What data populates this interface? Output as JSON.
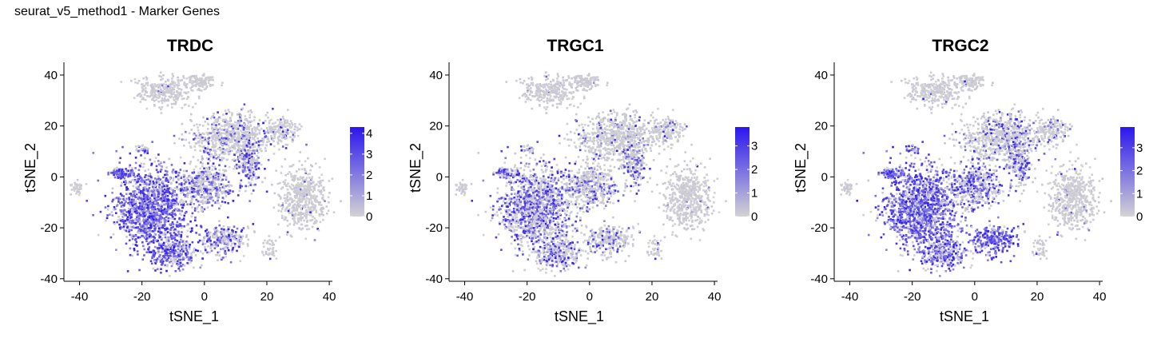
{
  "page": {
    "title": "seurat_v5_method1 - Marker Genes"
  },
  "colors": {
    "low": "#d3d3d3",
    "high": "#2a16ee",
    "axis": "#000000"
  },
  "chart_data": [
    {
      "type": "scatter",
      "title": "TRDC",
      "xlabel": "tSNE_1",
      "ylabel": "tSNE_2",
      "xlim": [
        -45,
        41
      ],
      "ylim": [
        -41,
        45
      ],
      "xticks": [
        -40,
        -20,
        0,
        20,
        40
      ],
      "yticks": [
        -40,
        -20,
        0,
        20,
        40
      ],
      "xticklabels": [
        "-40",
        "-20",
        "0",
        "20",
        "40"
      ],
      "yticklabels": [
        "-40",
        "-20",
        "0",
        "20",
        "40"
      ],
      "colorbar": {
        "min": 0,
        "max": 4.3,
        "ticks": [
          0,
          1,
          2,
          3,
          4
        ],
        "ticklabels": [
          "0",
          "1",
          "2",
          "3",
          "4"
        ]
      },
      "expression_by_region": {
        "lower-left cluster": "high",
        "upper-left cluster": "none",
        "right cluster": "none",
        "center-right cluster": "moderate"
      }
    },
    {
      "type": "scatter",
      "title": "TRGC1",
      "xlabel": "tSNE_1",
      "ylabel": "tSNE_2",
      "xlim": [
        -45,
        41
      ],
      "ylim": [
        -41,
        45
      ],
      "xticks": [
        -40,
        -20,
        0,
        20,
        40
      ],
      "yticks": [
        -40,
        -20,
        0,
        20,
        40
      ],
      "xticklabels": [
        "-40",
        "-20",
        "0",
        "20",
        "40"
      ],
      "yticklabels": [
        "-40",
        "-20",
        "0",
        "20",
        "40"
      ],
      "colorbar": {
        "min": 0,
        "max": 3.8,
        "ticks": [
          0,
          1,
          2,
          3
        ],
        "ticklabels": [
          "0",
          "1",
          "2",
          "3"
        ]
      },
      "expression_by_region": {
        "lower-left cluster": "moderate",
        "upper-left cluster": "none",
        "right cluster": "none",
        "center-right cluster": "low"
      }
    },
    {
      "type": "scatter",
      "title": "TRGC2",
      "xlabel": "tSNE_1",
      "ylabel": "tSNE_2",
      "xlim": [
        -45,
        41
      ],
      "ylim": [
        -41,
        45
      ],
      "xticks": [
        -40,
        -20,
        0,
        20,
        40
      ],
      "yticks": [
        -40,
        -20,
        0,
        20,
        40
      ],
      "xticklabels": [
        "-40",
        "-20",
        "0",
        "20",
        "40"
      ],
      "yticklabels": [
        "-40",
        "-20",
        "0",
        "20",
        "40"
      ],
      "colorbar": {
        "min": 0,
        "max": 3.9,
        "ticks": [
          0,
          1,
          2,
          3
        ],
        "ticklabels": [
          "0",
          "1",
          "2",
          "3"
        ]
      },
      "expression_by_region": {
        "lower-left cluster": "high",
        "upper-left cluster": "none",
        "right cluster": "none",
        "center-right cluster": "moderate"
      }
    }
  ]
}
